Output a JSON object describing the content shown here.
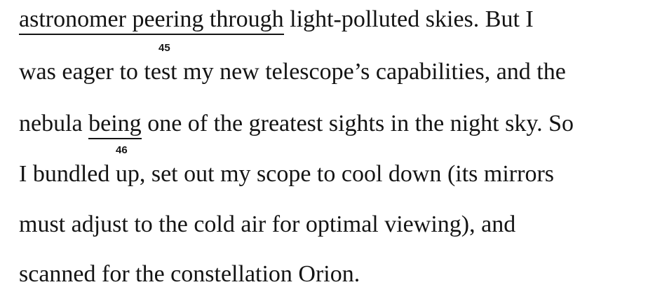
{
  "passage": {
    "line1": {
      "underlined": "astronomer peering through",
      "rest": " light-polluted skies. But I"
    },
    "marker1": "45",
    "line2": "was eager to test my new telescope’s capabilities, and the",
    "line3": {
      "before": "nebula ",
      "underlined": "being",
      "after": " one of the greatest sights in the night sky. So"
    },
    "marker2": "46",
    "line4": "I bundled up, set out my scope to cool down (its mirrors",
    "line5": "must adjust to the cold air for optimal viewing), and",
    "line6": "scanned for the constellation Orion."
  }
}
